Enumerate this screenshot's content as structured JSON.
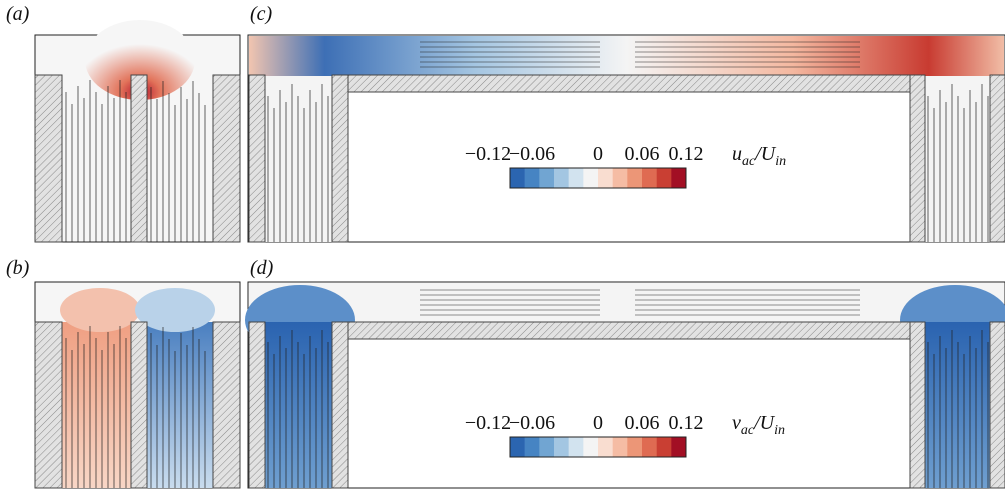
{
  "panels": [
    {
      "label": "(a)"
    },
    {
      "label": "(c)"
    },
    {
      "label": "(b)"
    },
    {
      "label": "(d)"
    }
  ],
  "colorbars": [
    {
      "lim": [
        -0.12,
        0.12
      ],
      "ticks": [
        {
          "value": -0.12,
          "label": "−0.12"
        },
        {
          "value": -0.06,
          "label": "−0.06"
        },
        0,
        {
          "value": 0.06,
          "label": "0.06"
        },
        {
          "value": 0.12,
          "label": "0.12"
        }
      ],
      "symbol": [
        "u",
        "ac",
        "/U",
        "in"
      ]
    },
    {
      "lim": [
        -0.12,
        0.12
      ],
      "ticks": [
        {
          "value": -0.12,
          "label": "−0.12"
        },
        {
          "value": -0.06,
          "label": "−0.06"
        },
        0,
        {
          "value": 0.06,
          "label": "0.06"
        },
        {
          "value": 0.12,
          "label": "0.12"
        }
      ],
      "symbol": [
        "v",
        "ac",
        "/U",
        "in"
      ]
    }
  ],
  "colors": [
    "#2b65b0",
    "#4684c3",
    "#71a5d2",
    "#a3c6e2",
    "#d2e3ef",
    "#f4f4f4",
    "#f9ddd0",
    "#f5bca4",
    "#ec9677",
    "#df6b52",
    "#c93f33",
    "#a20f24"
  ]
}
